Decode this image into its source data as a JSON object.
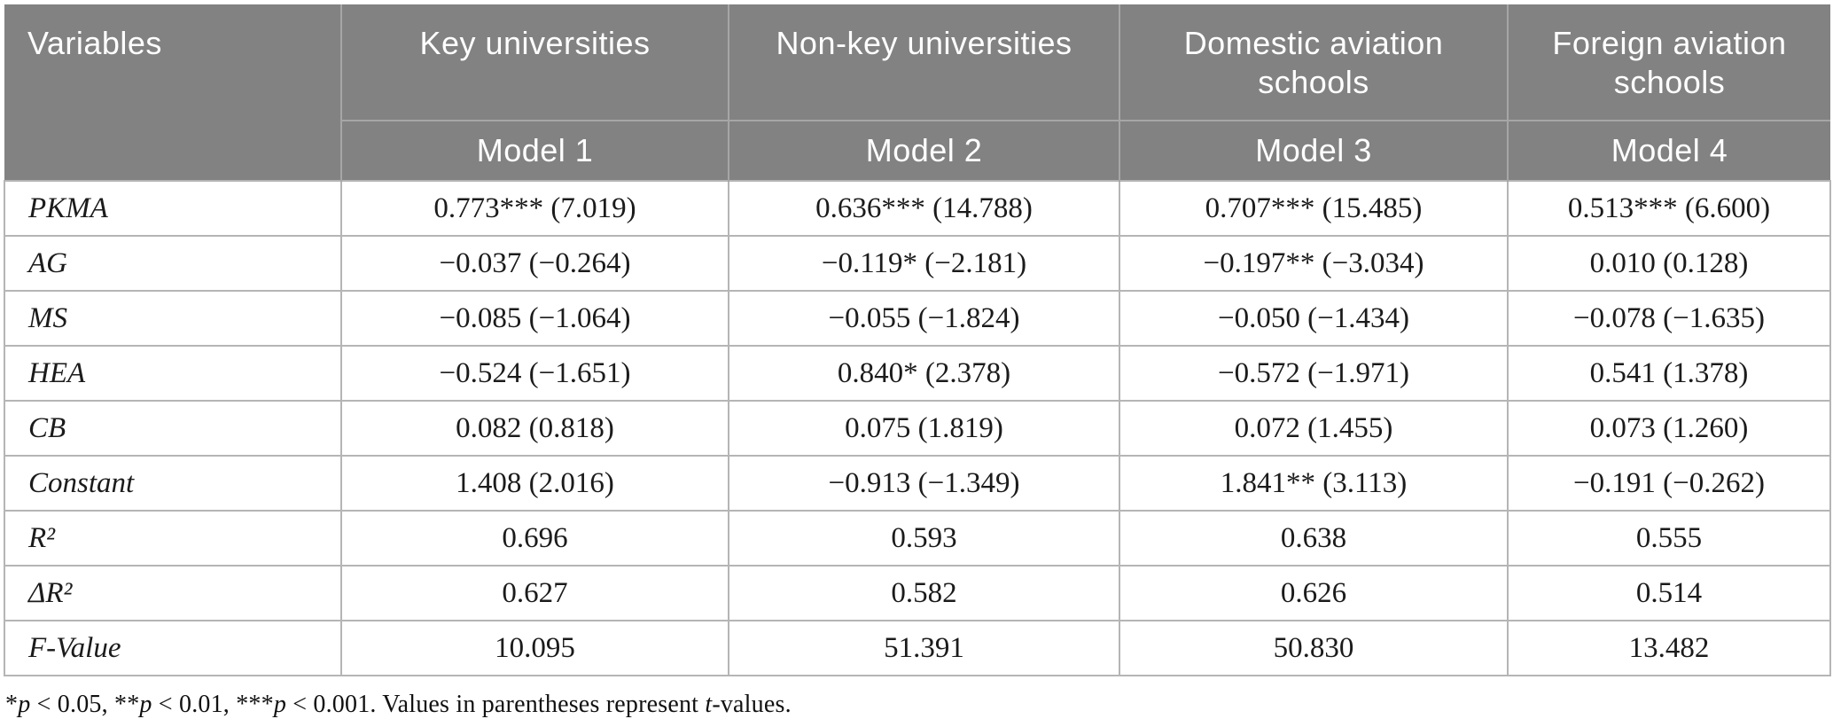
{
  "colors": {
    "header_bg": "#828282",
    "header_text": "#ffffff",
    "header_divider": "#a6a6a6",
    "body_border": "#b5b5b5",
    "body_text": "#1b1b1b"
  },
  "table": {
    "header": {
      "variables_label": "Variables",
      "groups": [
        {
          "label": "Key universities",
          "model": "Model 1"
        },
        {
          "label": "Non-key universities",
          "model": "Model 2"
        },
        {
          "label": "Domestic aviation schools",
          "model": "Model 3"
        },
        {
          "label": "Foreign aviation schools",
          "model": "Model 4"
        }
      ]
    },
    "rows": [
      {
        "variable": "PKMA",
        "values": [
          "0.773*** (7.019)",
          "0.636*** (14.788)",
          "0.707*** (15.485)",
          "0.513*** (6.600)"
        ]
      },
      {
        "variable": "AG",
        "values": [
          "−0.037 (−0.264)",
          "−0.119* (−2.181)",
          "−0.197** (−3.034)",
          "0.010 (0.128)"
        ]
      },
      {
        "variable": "MS",
        "values": [
          "−0.085 (−1.064)",
          "−0.055 (−1.824)",
          "−0.050 (−1.434)",
          "−0.078 (−1.635)"
        ]
      },
      {
        "variable": "HEA",
        "values": [
          "−0.524 (−1.651)",
          "0.840* (2.378)",
          "−0.572 (−1.971)",
          "0.541 (1.378)"
        ]
      },
      {
        "variable": "CB",
        "values": [
          "0.082 (0.818)",
          "0.075 (1.819)",
          "0.072 (1.455)",
          "0.073 (1.260)"
        ]
      },
      {
        "variable": "Constant",
        "values": [
          "1.408 (2.016)",
          "−0.913 (−1.349)",
          "1.841** (3.113)",
          "−0.191 (−0.262)"
        ]
      },
      {
        "variable": "R²",
        "values": [
          "0.696",
          "0.593",
          "0.638",
          "0.555"
        ]
      },
      {
        "variable": "ΔR²",
        "values": [
          "0.627",
          "0.582",
          "0.626",
          "0.514"
        ]
      },
      {
        "variable": "F-Value",
        "values": [
          "10.095",
          "51.391",
          "50.830",
          "13.482"
        ]
      }
    ],
    "footnote_segments": [
      {
        "text": "*",
        "italic": false
      },
      {
        "text": "p",
        "italic": true
      },
      {
        "text": " < 0.05, **",
        "italic": false
      },
      {
        "text": "p",
        "italic": true
      },
      {
        "text": " < 0.01, ***",
        "italic": false
      },
      {
        "text": "p",
        "italic": true
      },
      {
        "text": " < 0.001. Values in parentheses represent ",
        "italic": false
      },
      {
        "text": "t",
        "italic": true
      },
      {
        "text": "-values.",
        "italic": false
      }
    ]
  }
}
